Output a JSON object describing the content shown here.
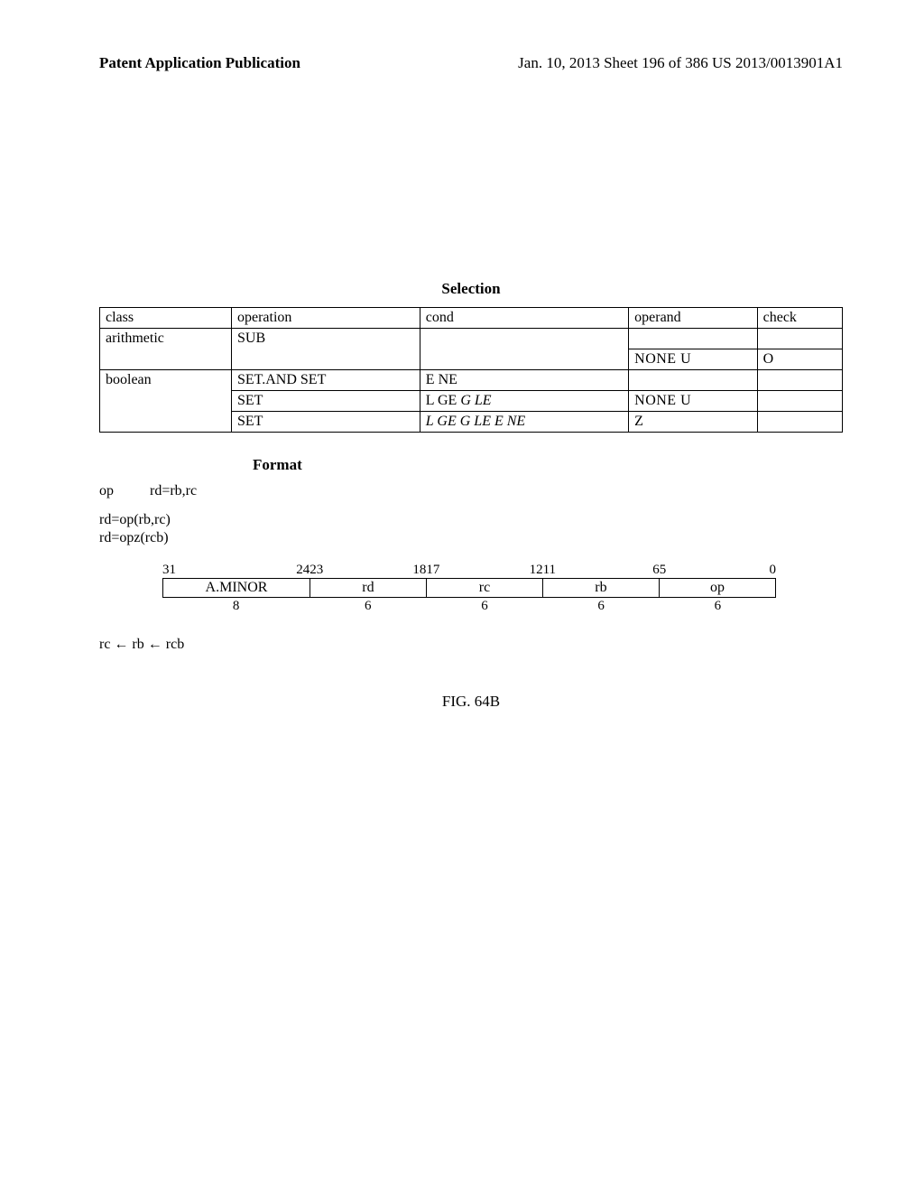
{
  "header": {
    "left": "Patent Application Publication",
    "right": "Jan. 10, 2013  Sheet 196 of 386   US 2013/0013901A1"
  },
  "selection": {
    "title": "Selection",
    "cols": [
      "class",
      "operation",
      "cond",
      "operand",
      "check"
    ],
    "rows": [
      {
        "class": "arithmetic",
        "op": "SUB",
        "cond": "",
        "operand": "",
        "check": ""
      },
      {
        "class": "",
        "op": "",
        "cond": "",
        "operand": "NONE    U",
        "check": "O"
      },
      {
        "class": "boolean",
        "op": "SET.AND SET",
        "cond": "E NE",
        "operand": "",
        "check": ""
      },
      {
        "class": "",
        "op": "SET",
        "cond_html": "L GE <span class=\"it\">G LE</span>",
        "operand": "NONE    U",
        "check": ""
      },
      {
        "class": "",
        "op": "SET",
        "cond_html": "<span class=\"it\">L GE G LE E NE</span>",
        "operand": "Z",
        "check": ""
      }
    ]
  },
  "format": {
    "title": "Format",
    "lines": {
      "l1_op": "op",
      "l1_rest": "rd=rb,rc",
      "l2": "rd=op(rb,rc)",
      "l3": "rd=opz(rcb)"
    }
  },
  "bitfield": {
    "top": {
      "p0a": "31",
      "p0b": "24",
      "p1a": "23",
      "p1b": "18",
      "p2a": "17",
      "p2b": "12",
      "p3a": "11",
      "p3b": "6",
      "p4a": "5",
      "p4b": "0"
    },
    "cells": [
      "A.MINOR",
      "rd",
      "rc",
      "rb",
      "op"
    ],
    "widths": [
      "8",
      "6",
      "6",
      "6",
      "6"
    ],
    "col_pct": [
      24,
      19,
      19,
      19,
      19
    ]
  },
  "flow": "rc ← rb ← rcb",
  "figure": "FIG. 64B",
  "style": {
    "page_bg": "#ffffff",
    "text_color": "#000000",
    "border_color": "#000000",
    "font_family": "Times New Roman"
  }
}
